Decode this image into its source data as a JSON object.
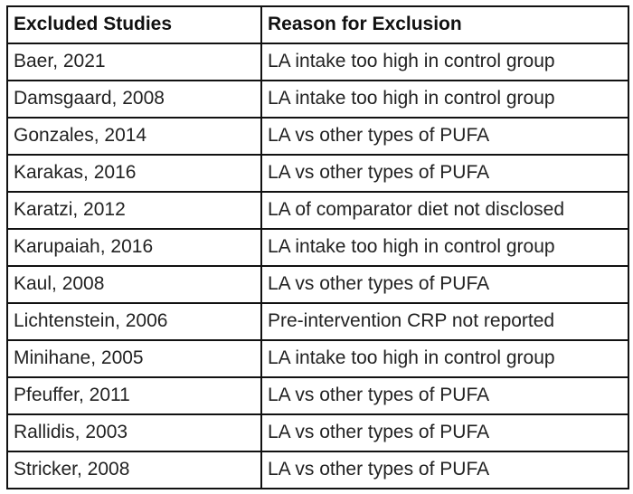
{
  "table": {
    "header": [
      "Excluded Studies",
      "Reason for Exclusion"
    ],
    "rows": [
      [
        "Baer, 2021",
        "LA intake too high in control group"
      ],
      [
        "Damsgaard, 2008",
        "LA intake too high in control group"
      ],
      [
        "Gonzales, 2014",
        "LA vs other types of PUFA"
      ],
      [
        "Karakas, 2016",
        "LA vs other types of PUFA"
      ],
      [
        "Karatzi, 2012",
        "LA of comparator diet not disclosed"
      ],
      [
        "Karupaiah, 2016",
        "LA intake too high in control group"
      ],
      [
        "Kaul, 2008",
        "LA vs other types of PUFA"
      ],
      [
        "Lichtenstein, 2006",
        "Pre-intervention CRP not reported"
      ],
      [
        "Minihane, 2005",
        "LA intake too high in control group"
      ],
      [
        "Pfeuffer, 2011",
        "LA vs other types of PUFA"
      ],
      [
        "Rallidis, 2003",
        "LA vs other types of PUFA"
      ],
      [
        "Stricker, 2008",
        "LA vs other types of PUFA"
      ]
    ]
  }
}
